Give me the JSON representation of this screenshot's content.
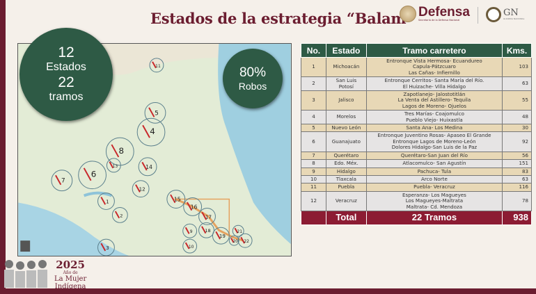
{
  "header": {
    "title": "Estados de la estrategia “Balam”",
    "logo_defensa": "Defensa",
    "logo_defensa_sub": "Secretaría de la Defensa Nacional",
    "logo_gn": "GN",
    "logo_gn_sub": "GUARDIA NACIONAL"
  },
  "stats": {
    "estados_num": "12",
    "estados_label": "Estados",
    "tramos_num": "22",
    "tramos_label": "tramos",
    "robos_pct": "80%",
    "robos_label": "Robos"
  },
  "map": {
    "markers": [
      "11",
      "5",
      "4",
      "8",
      "13",
      "14",
      "7",
      "6",
      "12",
      "1",
      "2",
      "3",
      "15",
      "16",
      "17",
      "18",
      "19",
      "9",
      "10",
      "20",
      "21",
      "22"
    ]
  },
  "table": {
    "headers": [
      "No.",
      "Estado",
      "Tramo carretero",
      "Kms."
    ],
    "rows": [
      {
        "no": "1",
        "estado": "Michoacán",
        "tramo": [
          "Entronque Vista Hermosa- Ecuandureo",
          "Capula-Pátzcuaro",
          "Las Cañas- Infiernillo"
        ],
        "kms": "103"
      },
      {
        "no": "2",
        "estado": "San Luis Potosí",
        "tramo": [
          "Entronque Cerritos- Santa María del Río.",
          "El Huizache- Villa Hidalgo"
        ],
        "kms": "63"
      },
      {
        "no": "3",
        "estado": "Jalisco",
        "tramo": [
          "Zapotlanejo- Jalostotitlán",
          "La Venta del Astillero- Tequila",
          "Lagos de Moreno- Ojuelos"
        ],
        "kms": "55"
      },
      {
        "no": "4",
        "estado": "Morelos",
        "tramo": [
          "Tres Marías- Coajomulco",
          "Pueblo Viejo- Huixastla"
        ],
        "kms": "48"
      },
      {
        "no": "5",
        "estado": "Nuevo León",
        "tramo": [
          "Santa Ana- Los Medina"
        ],
        "kms": "30"
      },
      {
        "no": "6",
        "estado": "Guanajuato",
        "tramo": [
          "Entronque Juventino Rosas- Apaseo El Grande",
          "Entronque Lagos de Moreno-León",
          "Dolores Hidalgo-San Luis de la Paz"
        ],
        "kms": "92"
      },
      {
        "no": "7",
        "estado": "Querétaro",
        "tramo": [
          "Querétaro-San Juan del Río"
        ],
        "kms": "56"
      },
      {
        "no": "8",
        "estado": "Edo. Méx.",
        "tramo": [
          "Atlacomulco- San Agustín"
        ],
        "kms": "151"
      },
      {
        "no": "9",
        "estado": "Hidalgo",
        "tramo": [
          "Pachuca- Tula"
        ],
        "kms": "83"
      },
      {
        "no": "10",
        "estado": "Tlaxcala",
        "tramo": [
          "Arco Norte"
        ],
        "kms": "63"
      },
      {
        "no": "11",
        "estado": "Puebla",
        "tramo": [
          "Puebla- Veracruz"
        ],
        "kms": "116"
      },
      {
        "no": "12",
        "estado": "Veracruz",
        "tramo": [
          "Esperanza- Los Magueyes",
          "Los Magueyes-Maltrata",
          "Maltrata- Cd. Mendoza"
        ],
        "kms": "78"
      }
    ],
    "total": {
      "label": "Total",
      "tramos": "22 Tramos",
      "kms": "938"
    }
  },
  "footer": {
    "year": "2025",
    "line1": "Año de",
    "line2": "La Mujer",
    "line3": "Indígena"
  },
  "colors": {
    "maroon": "#6b1d30",
    "green": "#2e5a45",
    "tan": "#e8d8b6",
    "total": "#8c1c33"
  }
}
